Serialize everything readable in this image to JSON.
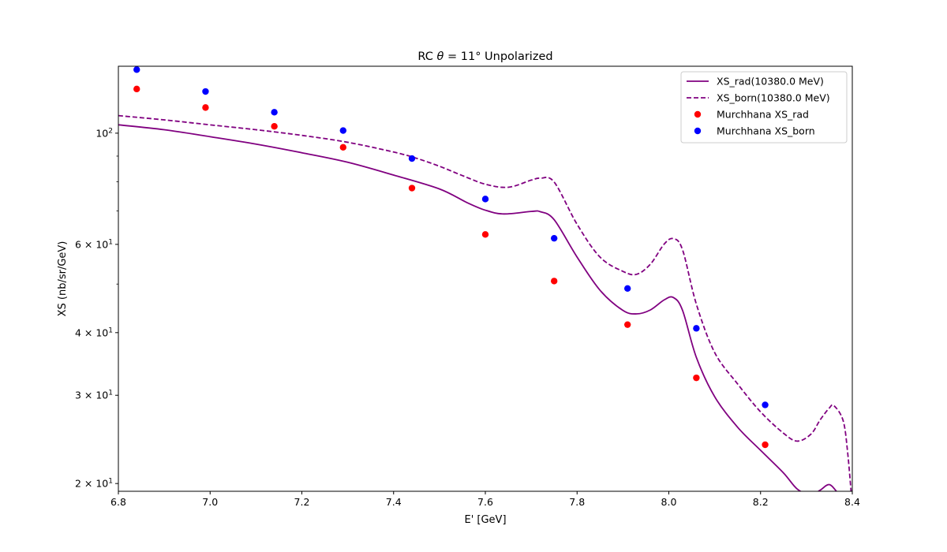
{
  "chart_data": {
    "type": "line",
    "title_prefix": "RC ",
    "title_theta": "θ",
    "title_rest": " = 11° Unpolarized",
    "xlabel": "E' [GeV]",
    "ylabel": "XS  (nb/sr/GeV)",
    "x_scale": "linear",
    "y_scale": "log",
    "xlim": [
      6.8,
      8.4
    ],
    "ylim": [
      19.3,
      136
    ],
    "x_ticks": [
      6.8,
      7.0,
      7.2,
      7.4,
      7.6,
      7.8,
      8.0,
      8.2,
      8.4
    ],
    "x_tick_labels": [
      "6.8",
      "7.0",
      "7.2",
      "7.4",
      "7.6",
      "7.8",
      "8.0",
      "8.2",
      "8.4"
    ],
    "y_ticks": [
      {
        "value": 100,
        "mantissa": "10",
        "exponent": "2"
      },
      {
        "value": 60,
        "mantissa": "6 × 10",
        "exponent": "1"
      },
      {
        "value": 40,
        "mantissa": "4 × 10",
        "exponent": "1"
      },
      {
        "value": 30,
        "mantissa": "3 × 10",
        "exponent": "1"
      },
      {
        "value": 20,
        "mantissa": "2 × 10",
        "exponent": "1"
      }
    ],
    "y_minor_ticks": [
      90,
      80,
      70,
      50
    ],
    "grid": false,
    "legend_position": "top-right",
    "series": [
      {
        "name": "XS_rad(10380.0 MeV)",
        "kind": "line",
        "dash": "solid",
        "color": "#800080",
        "x": [
          6.8,
          6.9,
          7.0,
          7.1,
          7.2,
          7.3,
          7.4,
          7.5,
          7.56,
          7.6,
          7.64,
          7.7,
          7.72,
          7.75,
          7.8,
          7.85,
          7.9,
          7.93,
          7.96,
          7.99,
          8.01,
          8.03,
          8.06,
          8.1,
          8.15,
          8.2,
          8.25,
          8.28,
          8.31,
          8.33,
          8.35,
          8.37,
          8.4
        ],
        "y": [
          103.9,
          101.6,
          98.4,
          95.1,
          91.4,
          87.5,
          82.5,
          77.4,
          72.7,
          70.2,
          69.0,
          69.8,
          69.7,
          67.2,
          56.6,
          48.6,
          44.3,
          43.6,
          44.4,
          46.5,
          47.0,
          44.3,
          35.7,
          29.8,
          25.9,
          23.3,
          21.0,
          19.5,
          19.0,
          19.4,
          19.9,
          19.1,
          18.0
        ]
      },
      {
        "name": "XS_born(10380.0 MeV)",
        "kind": "line",
        "dash": "dashed",
        "color": "#800080",
        "x": [
          6.8,
          6.9,
          7.0,
          7.1,
          7.2,
          7.3,
          7.4,
          7.45,
          7.5,
          7.55,
          7.6,
          7.65,
          7.7,
          7.72,
          7.75,
          7.8,
          7.85,
          7.9,
          7.93,
          7.96,
          7.99,
          8.01,
          8.03,
          8.06,
          8.1,
          8.15,
          8.2,
          8.25,
          8.28,
          8.31,
          8.33,
          8.35,
          8.36,
          8.38,
          8.39,
          8.4
        ],
        "y": [
          108.4,
          106.3,
          103.9,
          101.6,
          99.0,
          95.9,
          91.7,
          89.1,
          85.9,
          82.3,
          79.1,
          78.0,
          80.6,
          81.3,
          79.9,
          65.8,
          56.6,
          53.0,
          52.3,
          54.8,
          60.1,
          61.6,
          58.5,
          45.6,
          36.5,
          31.6,
          27.8,
          25.2,
          24.3,
          25.1,
          26.8,
          28.3,
          28.6,
          26.7,
          23.0,
          18.0
        ]
      },
      {
        "name": "Murchhana XS_rad",
        "kind": "scatter",
        "color": "#ff0000",
        "x": [
          6.84,
          6.99,
          7.14,
          7.29,
          7.44,
          7.6,
          7.75,
          7.91,
          8.06,
          8.21
        ],
        "y": [
          122.5,
          112.5,
          103.2,
          93.7,
          77.7,
          62.8,
          50.7,
          41.5,
          32.5,
          23.9
        ]
      },
      {
        "name": "Murchhana XS_born",
        "kind": "scatter",
        "color": "#0000ff",
        "x": [
          6.84,
          6.99,
          7.14,
          7.29,
          7.44,
          7.6,
          7.75,
          7.91,
          8.06,
          8.21
        ],
        "y": [
          133.9,
          121.1,
          110.1,
          101.2,
          89.0,
          73.9,
          61.7,
          49.0,
          40.8,
          28.7
        ]
      }
    ]
  }
}
